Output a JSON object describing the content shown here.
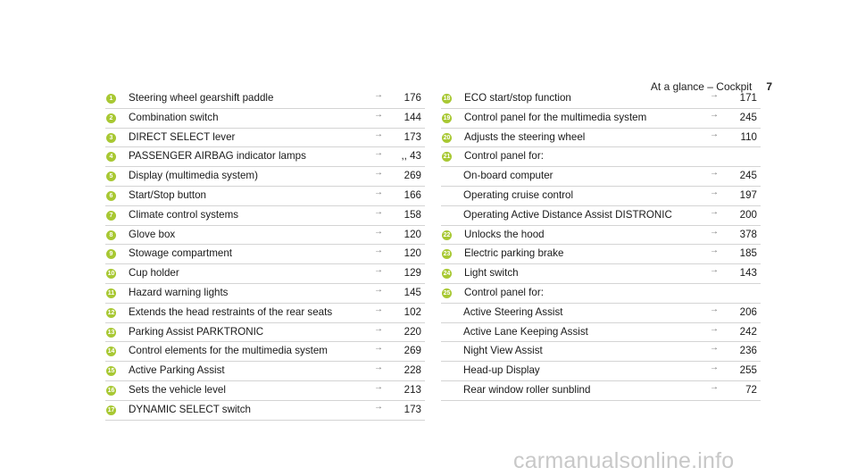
{
  "header": {
    "title": "At a glance – Cockpit",
    "page": "7"
  },
  "arrow": "→",
  "left": [
    {
      "num": "1",
      "label": "Steering wheel gearshift paddle",
      "page": "176"
    },
    {
      "num": "2",
      "label": "Combination switch",
      "page": "144"
    },
    {
      "num": "3",
      "label": "DIRECT SELECT lever",
      "page": "173"
    },
    {
      "num": "4",
      "label": "PASSENGER AIRBAG indicator lamps",
      "page": ",, 43"
    },
    {
      "num": "5",
      "label": "Display (multimedia system)",
      "page": "269"
    },
    {
      "num": "6",
      "label": "Start/Stop button",
      "page": "166"
    },
    {
      "num": "7",
      "label": "Climate control systems",
      "page": "158"
    },
    {
      "num": "8",
      "label": "Glove box",
      "page": "120"
    },
    {
      "num": "9",
      "label": "Stowage compartment",
      "page": "120"
    },
    {
      "num": "10",
      "label": "Cup holder",
      "page": "129"
    },
    {
      "num": "11",
      "label": "Hazard warning lights",
      "page": "145"
    },
    {
      "num": "12",
      "label": "Extends the head restraints of the rear seats",
      "page": "102"
    },
    {
      "num": "13",
      "label": "Parking Assist PARKTRONIC",
      "page": "220"
    },
    {
      "num": "14",
      "label": "Control elements for the multimedia system",
      "page": "269"
    },
    {
      "num": "15",
      "label": "Active Parking Assist",
      "page": "228"
    },
    {
      "num": "16",
      "label": "Sets the vehicle level",
      "page": "213"
    },
    {
      "num": "17",
      "label": "DYNAMIC SELECT switch",
      "page": "173"
    }
  ],
  "right": [
    {
      "num": "18",
      "label": "ECO start/stop function",
      "page": "171"
    },
    {
      "num": "19",
      "label": "Control panel for the multimedia system",
      "page": "245"
    },
    {
      "num": "20",
      "label": "Adjusts the steering wheel",
      "page": "110"
    },
    {
      "num": "21",
      "label": "Control panel for:",
      "page": ""
    },
    {
      "num": "",
      "label": "On-board computer",
      "page": "245"
    },
    {
      "num": "",
      "label": "Operating cruise control",
      "page": "197"
    },
    {
      "num": "",
      "label": "Operating Active Distance Assist DISTRONIC",
      "page": "200"
    },
    {
      "num": "22",
      "label": "Unlocks the hood",
      "page": "378"
    },
    {
      "num": "23",
      "label": "Electric parking brake",
      "page": "185"
    },
    {
      "num": "24",
      "label": "Light switch",
      "page": "143"
    },
    {
      "num": "25",
      "label": "Control panel for:",
      "page": ""
    },
    {
      "num": "",
      "label": "Active Steering Assist",
      "page": "206"
    },
    {
      "num": "",
      "label": "Active Lane Keeping Assist",
      "page": "242"
    },
    {
      "num": "",
      "label": "Night View Assist",
      "page": "236"
    },
    {
      "num": "",
      "label": "Head-up Display",
      "page": "255"
    },
    {
      "num": "",
      "label": "Rear window roller sunblind",
      "page": "72"
    }
  ],
  "watermark": "carmanualsonline.info",
  "colors": {
    "badge": "#a8c833",
    "divider": "#d4d4d4"
  }
}
